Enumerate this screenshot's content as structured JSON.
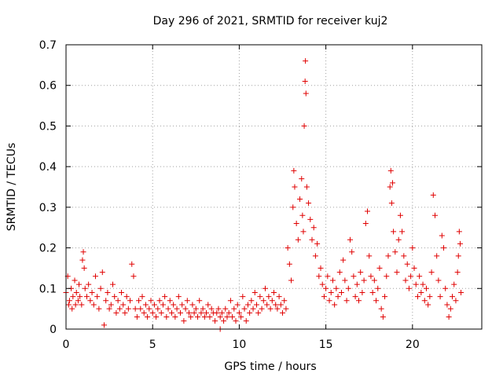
{
  "chart_data": {
    "type": "scatter",
    "title": "Day 296 of 2021, SRMTID for receiver kuj2",
    "xlabel": "GPS time / hours",
    "ylabel": "SRMTID / TECUs",
    "xlim": [
      0,
      24
    ],
    "ylim": [
      0,
      0.7
    ],
    "xticks": [
      0,
      5,
      10,
      15,
      20
    ],
    "xtick_labels": [
      "0",
      "5",
      "10",
      "15",
      "20"
    ],
    "yticks": [
      0,
      0.1,
      0.2,
      0.3,
      0.4,
      0.5,
      0.6,
      0.7
    ],
    "ytick_labels": [
      "0",
      "0.1",
      "0.2",
      "0.3",
      "0.4",
      "0.5",
      "0.6",
      "0.7"
    ],
    "grid": true,
    "marker": "plus",
    "color": "#e00000",
    "series": [
      {
        "name": "SRMTID",
        "points": [
          [
            0.0,
            0.09
          ],
          [
            0.1,
            0.13
          ],
          [
            0.15,
            0.06
          ],
          [
            0.2,
            0.07
          ],
          [
            0.3,
            0.1
          ],
          [
            0.35,
            0.05
          ],
          [
            0.4,
            0.08
          ],
          [
            0.5,
            0.12
          ],
          [
            0.55,
            0.06
          ],
          [
            0.6,
            0.09
          ],
          [
            0.7,
            0.07
          ],
          [
            0.75,
            0.11
          ],
          [
            0.8,
            0.08
          ],
          [
            0.9,
            0.06
          ],
          [
            0.95,
            0.17
          ],
          [
            1.0,
            0.19
          ],
          [
            1.05,
            0.15
          ],
          [
            1.1,
            0.1
          ],
          [
            1.2,
            0.08
          ],
          [
            1.3,
            0.11
          ],
          [
            1.4,
            0.07
          ],
          [
            1.5,
            0.09
          ],
          [
            1.6,
            0.06
          ],
          [
            1.7,
            0.13
          ],
          [
            1.8,
            0.08
          ],
          [
            1.9,
            0.05
          ],
          [
            2.0,
            0.1
          ],
          [
            2.1,
            0.14
          ],
          [
            2.2,
            0.01
          ],
          [
            2.3,
            0.07
          ],
          [
            2.4,
            0.09
          ],
          [
            2.5,
            0.05
          ],
          [
            2.6,
            0.06
          ],
          [
            2.7,
            0.11
          ],
          [
            2.8,
            0.08
          ],
          [
            2.9,
            0.04
          ],
          [
            3.0,
            0.07
          ],
          [
            3.1,
            0.05
          ],
          [
            3.2,
            0.09
          ],
          [
            3.3,
            0.06
          ],
          [
            3.4,
            0.04
          ],
          [
            3.5,
            0.08
          ],
          [
            3.6,
            0.05
          ],
          [
            3.7,
            0.07
          ],
          [
            3.8,
            0.16
          ],
          [
            3.9,
            0.13
          ],
          [
            4.0,
            0.05
          ],
          [
            4.1,
            0.03
          ],
          [
            4.2,
            0.07
          ],
          [
            4.3,
            0.05
          ],
          [
            4.4,
            0.08
          ],
          [
            4.5,
            0.04
          ],
          [
            4.6,
            0.06
          ],
          [
            4.7,
            0.03
          ],
          [
            4.8,
            0.05
          ],
          [
            4.9,
            0.07
          ],
          [
            5.0,
            0.04
          ],
          [
            5.1,
            0.06
          ],
          [
            5.2,
            0.03
          ],
          [
            5.3,
            0.05
          ],
          [
            5.4,
            0.07
          ],
          [
            5.5,
            0.04
          ],
          [
            5.6,
            0.06
          ],
          [
            5.7,
            0.08
          ],
          [
            5.8,
            0.03
          ],
          [
            5.9,
            0.05
          ],
          [
            6.0,
            0.07
          ],
          [
            6.1,
            0.04
          ],
          [
            6.2,
            0.06
          ],
          [
            6.3,
            0.03
          ],
          [
            6.4,
            0.05
          ],
          [
            6.5,
            0.08
          ],
          [
            6.6,
            0.04
          ],
          [
            6.7,
            0.06
          ],
          [
            6.8,
            0.02
          ],
          [
            6.9,
            0.05
          ],
          [
            7.0,
            0.07
          ],
          [
            7.1,
            0.04
          ],
          [
            7.2,
            0.03
          ],
          [
            7.3,
            0.06
          ],
          [
            7.4,
            0.04
          ],
          [
            7.5,
            0.05
          ],
          [
            7.6,
            0.03
          ],
          [
            7.7,
            0.07
          ],
          [
            7.8,
            0.04
          ],
          [
            7.9,
            0.05
          ],
          [
            8.0,
            0.03
          ],
          [
            8.1,
            0.04
          ],
          [
            8.2,
            0.06
          ],
          [
            8.3,
            0.03
          ],
          [
            8.4,
            0.05
          ],
          [
            8.5,
            0.04
          ],
          [
            8.6,
            0.02
          ],
          [
            8.7,
            0.04
          ],
          [
            8.8,
            0.05
          ],
          [
            8.9,
            0.03
          ],
          [
            8.9,
            0.0
          ],
          [
            9.0,
            0.04
          ],
          [
            9.1,
            0.02
          ],
          [
            9.2,
            0.05
          ],
          [
            9.3,
            0.03
          ],
          [
            9.4,
            0.04
          ],
          [
            9.5,
            0.07
          ],
          [
            9.6,
            0.03
          ],
          [
            9.7,
            0.05
          ],
          [
            9.8,
            0.02
          ],
          [
            9.9,
            0.06
          ],
          [
            10.0,
            0.04
          ],
          [
            10.1,
            0.03
          ],
          [
            10.2,
            0.08
          ],
          [
            10.3,
            0.05
          ],
          [
            10.4,
            0.02
          ],
          [
            10.5,
            0.06
          ],
          [
            10.6,
            0.04
          ],
          [
            10.7,
            0.07
          ],
          [
            10.8,
            0.05
          ],
          [
            10.9,
            0.09
          ],
          [
            11.0,
            0.06
          ],
          [
            11.1,
            0.04
          ],
          [
            11.2,
            0.08
          ],
          [
            11.3,
            0.05
          ],
          [
            11.4,
            0.07
          ],
          [
            11.5,
            0.1
          ],
          [
            11.6,
            0.06
          ],
          [
            11.7,
            0.08
          ],
          [
            11.8,
            0.05
          ],
          [
            11.9,
            0.07
          ],
          [
            12.0,
            0.09
          ],
          [
            12.1,
            0.06
          ],
          [
            12.2,
            0.05
          ],
          [
            12.3,
            0.08
          ],
          [
            12.4,
            0.06
          ],
          [
            12.5,
            0.04
          ],
          [
            12.6,
            0.07
          ],
          [
            12.7,
            0.05
          ],
          [
            12.8,
            0.2
          ],
          [
            12.9,
            0.16
          ],
          [
            13.0,
            0.12
          ],
          [
            13.1,
            0.3
          ],
          [
            13.15,
            0.39
          ],
          [
            13.2,
            0.35
          ],
          [
            13.3,
            0.26
          ],
          [
            13.4,
            0.22
          ],
          [
            13.5,
            0.32
          ],
          [
            13.6,
            0.37
          ],
          [
            13.65,
            0.28
          ],
          [
            13.7,
            0.24
          ],
          [
            13.75,
            0.5
          ],
          [
            13.8,
            0.61
          ],
          [
            13.82,
            0.66
          ],
          [
            13.85,
            0.58
          ],
          [
            13.9,
            0.35
          ],
          [
            14.0,
            0.31
          ],
          [
            14.1,
            0.27
          ],
          [
            14.2,
            0.22
          ],
          [
            14.3,
            0.25
          ],
          [
            14.4,
            0.18
          ],
          [
            14.5,
            0.21
          ],
          [
            14.6,
            0.13
          ],
          [
            14.7,
            0.15
          ],
          [
            14.8,
            0.11
          ],
          [
            14.9,
            0.08
          ],
          [
            15.0,
            0.1
          ],
          [
            15.1,
            0.13
          ],
          [
            15.2,
            0.07
          ],
          [
            15.3,
            0.09
          ],
          [
            15.4,
            0.12
          ],
          [
            15.5,
            0.06
          ],
          [
            15.6,
            0.1
          ],
          [
            15.7,
            0.08
          ],
          [
            15.8,
            0.14
          ],
          [
            15.9,
            0.09
          ],
          [
            16.0,
            0.17
          ],
          [
            16.1,
            0.12
          ],
          [
            16.2,
            0.07
          ],
          [
            16.3,
            0.1
          ],
          [
            16.4,
            0.22
          ],
          [
            16.5,
            0.19
          ],
          [
            16.6,
            0.13
          ],
          [
            16.7,
            0.08
          ],
          [
            16.8,
            0.11
          ],
          [
            16.9,
            0.07
          ],
          [
            17.0,
            0.14
          ],
          [
            17.1,
            0.09
          ],
          [
            17.2,
            0.12
          ],
          [
            17.3,
            0.26
          ],
          [
            17.4,
            0.29
          ],
          [
            17.5,
            0.18
          ],
          [
            17.6,
            0.13
          ],
          [
            17.7,
            0.09
          ],
          [
            17.8,
            0.12
          ],
          [
            17.9,
            0.07
          ],
          [
            18.0,
            0.1
          ],
          [
            18.1,
            0.15
          ],
          [
            18.2,
            0.05
          ],
          [
            18.3,
            0.03
          ],
          [
            18.4,
            0.08
          ],
          [
            18.5,
            0.13
          ],
          [
            18.6,
            0.18
          ],
          [
            18.7,
            0.35
          ],
          [
            18.75,
            0.39
          ],
          [
            18.8,
            0.31
          ],
          [
            18.85,
            0.36
          ],
          [
            18.9,
            0.24
          ],
          [
            19.0,
            0.19
          ],
          [
            19.1,
            0.14
          ],
          [
            19.2,
            0.22
          ],
          [
            19.3,
            0.28
          ],
          [
            19.4,
            0.24
          ],
          [
            19.5,
            0.18
          ],
          [
            19.6,
            0.12
          ],
          [
            19.7,
            0.16
          ],
          [
            19.8,
            0.1
          ],
          [
            19.9,
            0.13
          ],
          [
            20.0,
            0.2
          ],
          [
            20.1,
            0.15
          ],
          [
            20.2,
            0.11
          ],
          [
            20.3,
            0.08
          ],
          [
            20.4,
            0.13
          ],
          [
            20.5,
            0.09
          ],
          [
            20.6,
            0.11
          ],
          [
            20.7,
            0.07
          ],
          [
            20.8,
            0.1
          ],
          [
            20.9,
            0.06
          ],
          [
            21.0,
            0.08
          ],
          [
            21.1,
            0.14
          ],
          [
            21.2,
            0.33
          ],
          [
            21.3,
            0.28
          ],
          [
            21.4,
            0.18
          ],
          [
            21.5,
            0.12
          ],
          [
            21.6,
            0.08
          ],
          [
            21.7,
            0.23
          ],
          [
            21.8,
            0.2
          ],
          [
            21.9,
            0.1
          ],
          [
            22.0,
            0.06
          ],
          [
            22.1,
            0.03
          ],
          [
            22.2,
            0.05
          ],
          [
            22.3,
            0.08
          ],
          [
            22.4,
            0.11
          ],
          [
            22.5,
            0.07
          ],
          [
            22.6,
            0.14
          ],
          [
            22.65,
            0.18
          ],
          [
            22.7,
            0.24
          ],
          [
            22.75,
            0.21
          ],
          [
            22.8,
            0.09
          ]
        ]
      }
    ]
  }
}
